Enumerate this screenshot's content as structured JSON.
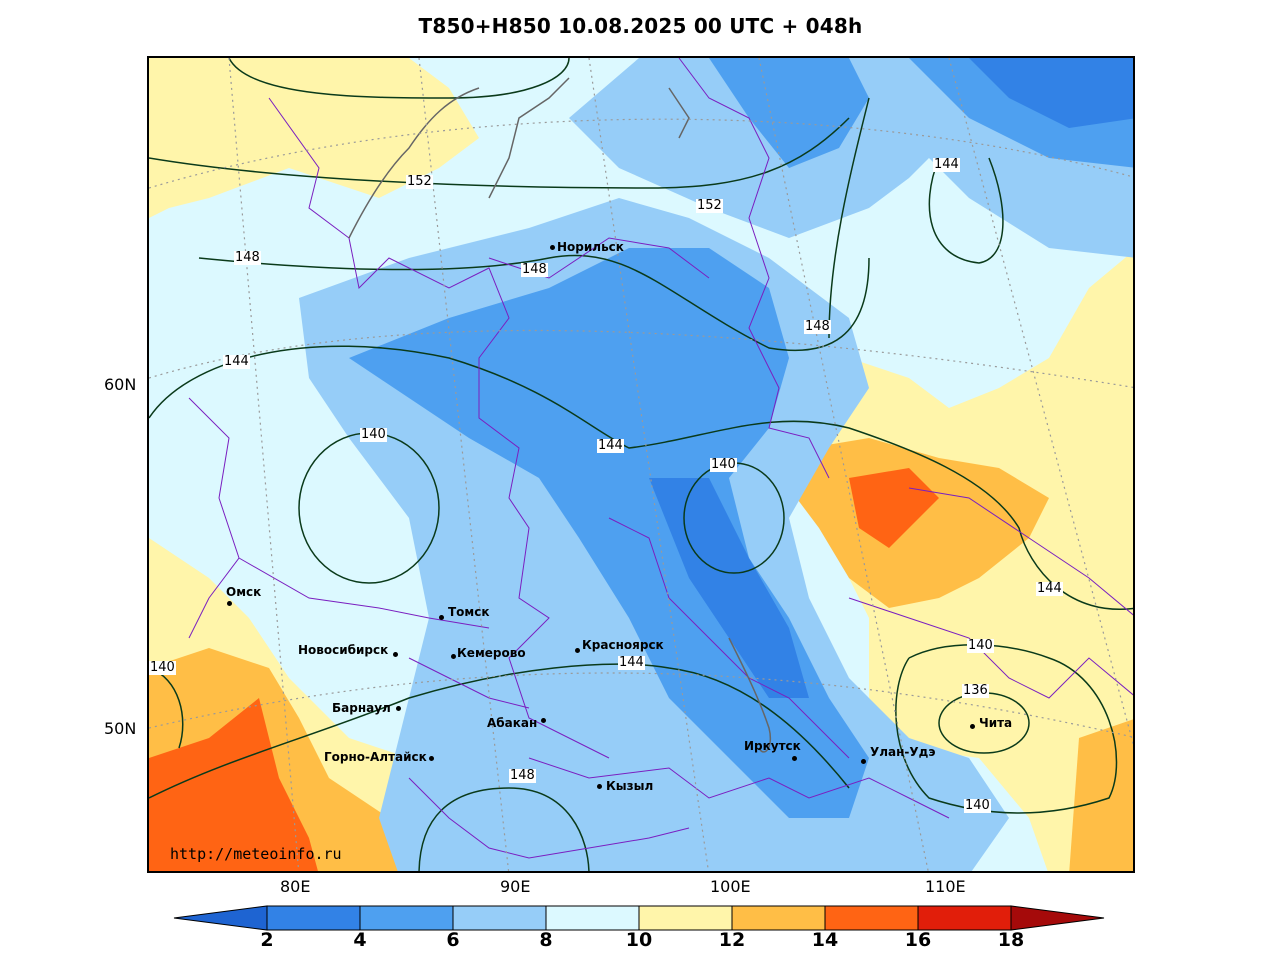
{
  "title": "T850+H850 10.08.2025 00 UTC + 048h",
  "lat_labels": [
    "60N",
    "50N"
  ],
  "lon_labels": [
    "80E",
    "90E",
    "100E",
    "110E"
  ],
  "cities": [
    {
      "name": "Норильск"
    },
    {
      "name": "Омск"
    },
    {
      "name": "Томск"
    },
    {
      "name": "Новосибирск"
    },
    {
      "name": "Кемерово"
    },
    {
      "name": "Красноярск"
    },
    {
      "name": "Барнаул"
    },
    {
      "name": "Абакан"
    },
    {
      "name": "Горно-Алтайск"
    },
    {
      "name": "Кызыл"
    },
    {
      "name": "Иркутск"
    },
    {
      "name": "Улан-Удэ"
    },
    {
      "name": "Чита"
    }
  ],
  "isolines": [
    "152",
    "152",
    "148",
    "148",
    "148",
    "148",
    "144",
    "144",
    "144",
    "144",
    "144",
    "140",
    "140",
    "140",
    "140",
    "140",
    "136",
    "140"
  ],
  "watermark": "http://meteoinfo.ru",
  "colorbar": {
    "ticks": [
      "2",
      "4",
      "6",
      "8",
      "10",
      "12",
      "14",
      "16",
      "18"
    ],
    "colors": [
      "#1e64d2",
      "#3282e6",
      "#4ea0f0",
      "#96cdf8",
      "#dcf9ff",
      "#fff5aa",
      "#ffbe46",
      "#ff6414",
      "#e11e0a",
      "#a50a0a"
    ]
  }
}
